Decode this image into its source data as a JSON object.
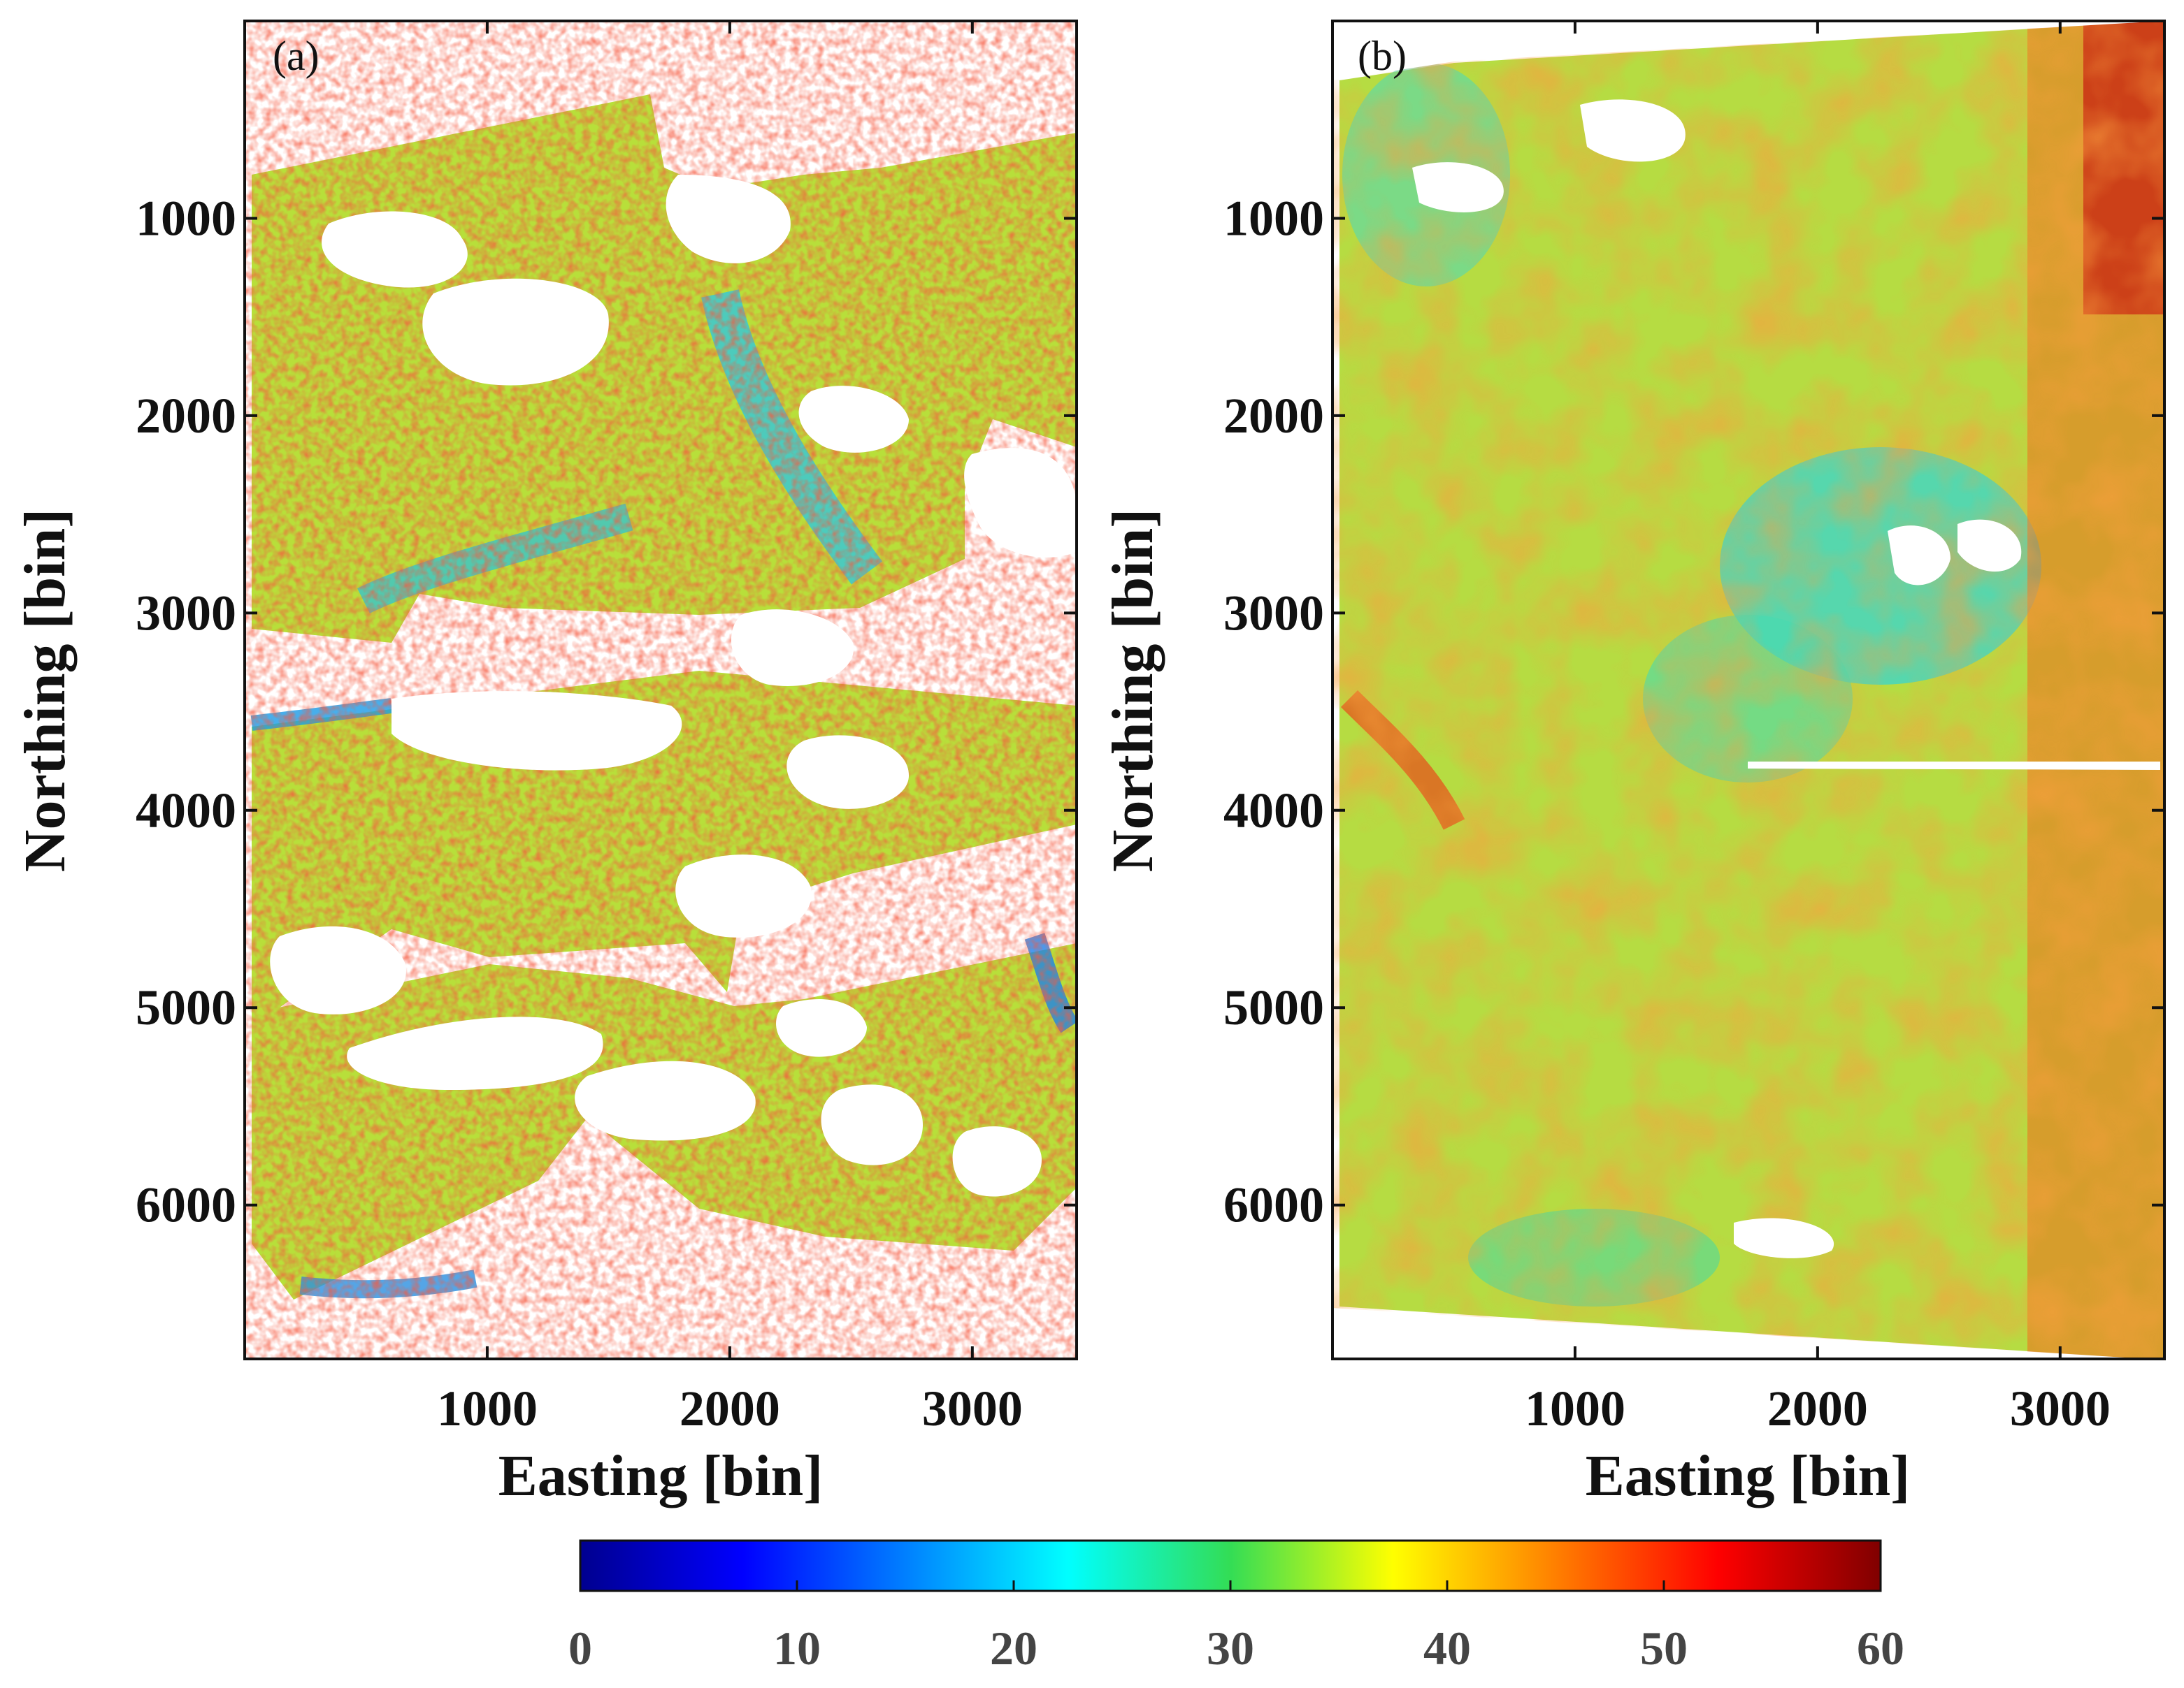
{
  "chart_data": [
    {
      "type": "heatmap",
      "panel_label": "(a)",
      "xlabel": "Easting [bin]",
      "ylabel": "Northing [bin]",
      "xlim": [
        0,
        3430
      ],
      "ylim": [
        0,
        6780
      ],
      "y_inverted": true,
      "xticks": [
        1000,
        2000,
        3000
      ],
      "yticks": [
        1000,
        2000,
        3000,
        4000,
        5000,
        6000
      ],
      "value_range": [
        0,
        60
      ],
      "description_values": "patchy speckled field, mostly 25-55, many blank gaps"
    },
    {
      "type": "heatmap",
      "panel_label": "(b)",
      "xlabel": "Easting [bin]",
      "ylabel": "Northing [bin]",
      "xlim": [
        0,
        3430
      ],
      "ylim": [
        0,
        6780
      ],
      "y_inverted": true,
      "xticks": [
        1000,
        2000,
        3000
      ],
      "yticks": [
        1000,
        2000,
        3000,
        4000,
        5000,
        6000
      ],
      "value_range": [
        0,
        60
      ],
      "description_values": "smooth continuous field, mostly 25-45, higher (50-60) near right edge"
    }
  ],
  "colorbar": {
    "colormap": "jet",
    "min": 0,
    "max": 60,
    "ticks": [
      "0",
      "10",
      "20",
      "30",
      "40",
      "50",
      "60"
    ]
  },
  "colors": {
    "axis": "#111111",
    "background": "#ffffff"
  }
}
